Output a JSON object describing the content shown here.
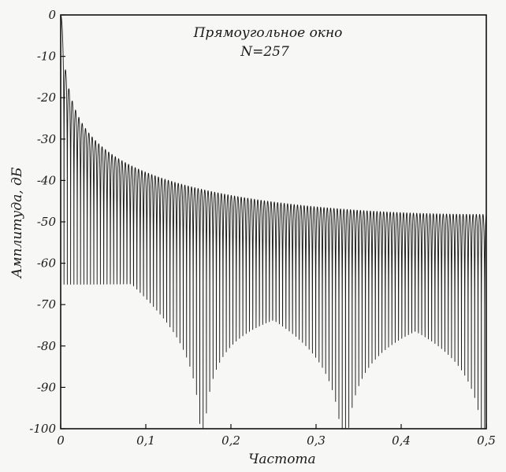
{
  "chart_data": {
    "type": "line",
    "annotation": [
      "Прямоугольное окно",
      "N=257"
    ],
    "xlabel": "Частота",
    "ylabel": "Амплитуда, дБ",
    "xlim": [
      0,
      0.5
    ],
    "ylim": [
      -100,
      0
    ],
    "x_ticks": [
      0,
      0.1,
      0.2,
      0.3,
      0.4,
      0.5
    ],
    "x_tick_labels": [
      "0",
      "0,1",
      "0,2",
      "0,3",
      "0,4",
      "0,5"
    ],
    "y_ticks": [
      0,
      -10,
      -20,
      -30,
      -40,
      -50,
      -60,
      -70,
      -80,
      -90,
      -100
    ],
    "y_tick_labels": [
      "0",
      "-10",
      "-20",
      "-30",
      "-40",
      "-50",
      "-60",
      "-70",
      "-80",
      "-90",
      "-100"
    ],
    "grid": false,
    "series": [
      {
        "window_length": 257,
        "clip_db": -100
      }
    ]
  }
}
